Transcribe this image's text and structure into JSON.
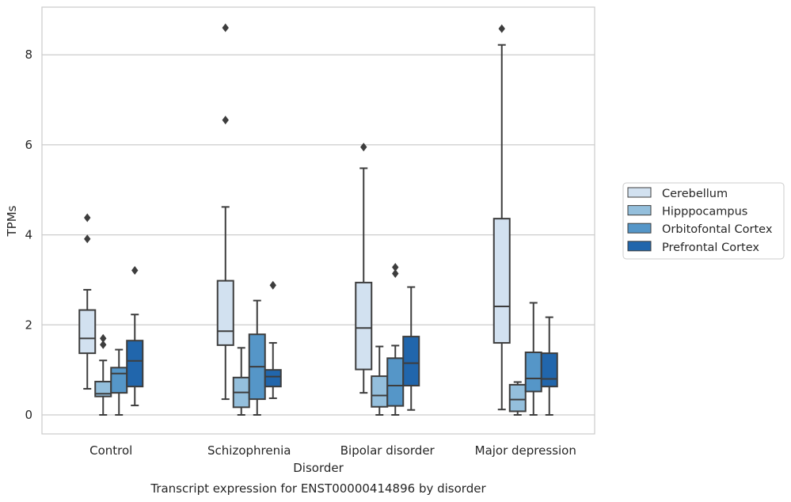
{
  "chart_data": {
    "type": "box",
    "title": "Transcript expression for ENST00000414896 by disorder",
    "xlabel": "Disorder",
    "ylabel": "TPMs",
    "ylim": [
      -0.35,
      9.15
    ],
    "yticks": [
      0,
      2,
      4,
      6,
      8
    ],
    "grid": "horizontal",
    "legend_position": "right",
    "categories": [
      "Control",
      "Schizophrenia",
      "Bipolar disorder",
      "Major depression"
    ],
    "series": [
      {
        "name": "Cerebellum",
        "color": "#d2e1f0",
        "boxes": [
          {
            "whisker_low": 0.58,
            "q1": 1.37,
            "median": 1.7,
            "q3": 2.33,
            "whisker_high": 2.78,
            "outliers": [
              3.91,
              4.38
            ]
          },
          {
            "whisker_low": 0.35,
            "q1": 1.55,
            "median": 1.86,
            "q3": 2.98,
            "whisker_high": 4.62,
            "outliers": [
              6.55,
              8.6
            ]
          },
          {
            "whisker_low": 0.49,
            "q1": 1.01,
            "median": 1.93,
            "q3": 2.94,
            "whisker_high": 5.48,
            "outliers": [
              5.95
            ]
          },
          {
            "whisker_low": 0.12,
            "q1": 1.6,
            "median": 2.41,
            "q3": 4.36,
            "whisker_high": 8.22,
            "outliers": [
              8.58
            ]
          }
        ]
      },
      {
        "name": "Hipppocampus",
        "color": "#94bfdc",
        "boxes": [
          {
            "whisker_low": 0.0,
            "q1": 0.41,
            "median": 0.47,
            "q3": 0.74,
            "whisker_high": 1.21,
            "outliers": [
              1.56,
              1.7
            ]
          },
          {
            "whisker_low": 0.0,
            "q1": 0.17,
            "median": 0.5,
            "q3": 0.83,
            "whisker_high": 1.49,
            "outliers": []
          },
          {
            "whisker_low": 0.0,
            "q1": 0.18,
            "median": 0.43,
            "q3": 0.86,
            "whisker_high": 1.52,
            "outliers": []
          },
          {
            "whisker_low": 0.0,
            "q1": 0.08,
            "median": 0.34,
            "q3": 0.67,
            "whisker_high": 0.73,
            "outliers": []
          }
        ]
      },
      {
        "name": "Orbitofontal Cortex",
        "color": "#5596c8",
        "boxes": [
          {
            "whisker_low": 0.0,
            "q1": 0.49,
            "median": 0.92,
            "q3": 1.05,
            "whisker_high": 1.45,
            "outliers": []
          },
          {
            "whisker_low": 0.0,
            "q1": 0.35,
            "median": 1.07,
            "q3": 1.79,
            "whisker_high": 2.54,
            "outliers": []
          },
          {
            "whisker_low": 0.0,
            "q1": 0.2,
            "median": 0.65,
            "q3": 1.26,
            "whisker_high": 1.54,
            "outliers": [
              3.14,
              3.28
            ]
          },
          {
            "whisker_low": 0.0,
            "q1": 0.52,
            "median": 0.81,
            "q3": 1.39,
            "whisker_high": 2.49,
            "outliers": []
          }
        ]
      },
      {
        "name": "Prefrontal Cortex",
        "color": "#2166ac",
        "boxes": [
          {
            "whisker_low": 0.21,
            "q1": 0.63,
            "median": 1.2,
            "q3": 1.65,
            "whisker_high": 2.23,
            "outliers": [
              3.21
            ]
          },
          {
            "whisker_low": 0.37,
            "q1": 0.63,
            "median": 0.85,
            "q3": 1.0,
            "whisker_high": 1.6,
            "outliers": [
              2.88
            ]
          },
          {
            "whisker_low": 0.11,
            "q1": 0.65,
            "median": 1.15,
            "q3": 1.74,
            "whisker_high": 2.84,
            "outliers": []
          },
          {
            "whisker_low": 0.0,
            "q1": 0.63,
            "median": 0.8,
            "q3": 1.37,
            "whisker_high": 2.17,
            "outliers": []
          }
        ]
      }
    ]
  }
}
